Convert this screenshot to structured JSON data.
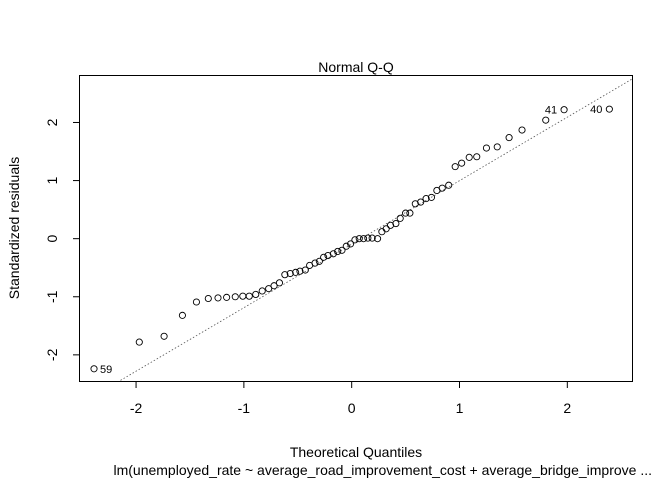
{
  "chart_data": {
    "type": "scatter",
    "title": "Normal Q-Q",
    "xlabel": "Theoretical Quantiles",
    "ylabel": "Standardized residuals",
    "subtitle": "lm(unemployed_rate ~ average_road_improvement_cost + average_bridge_improve ...",
    "xlim": [
      -2.52,
      2.6
    ],
    "ylim": [
      -2.45,
      2.8
    ],
    "x_ticks": [
      -2,
      -1,
      0,
      1,
      2
    ],
    "y_ticks": [
      -2,
      -1,
      0,
      1,
      2
    ],
    "grid": false,
    "reference_line": {
      "style": "dotted",
      "points": [
        [
          -2.2,
          -2.5
        ],
        [
          2.63,
          2.78
        ]
      ]
    },
    "annotations": [
      {
        "text": "59",
        "x": -2.39,
        "y": -2.24
      },
      {
        "text": "41",
        "x": 1.97,
        "y": 2.22
      },
      {
        "text": "40",
        "x": 2.39,
        "y": 2.23
      }
    ],
    "points": [
      {
        "x": -2.39,
        "y": -2.24
      },
      {
        "x": -1.97,
        "y": -1.78
      },
      {
        "x": -1.74,
        "y": -1.68
      },
      {
        "x": -1.57,
        "y": -1.32
      },
      {
        "x": -1.44,
        "y": -1.09
      },
      {
        "x": -1.33,
        "y": -1.03
      },
      {
        "x": -1.24,
        "y": -1.02
      },
      {
        "x": -1.16,
        "y": -1.01
      },
      {
        "x": -1.08,
        "y": -1.0
      },
      {
        "x": -1.01,
        "y": -0.99
      },
      {
        "x": -0.95,
        "y": -0.99
      },
      {
        "x": -0.89,
        "y": -0.96
      },
      {
        "x": -0.83,
        "y": -0.9
      },
      {
        "x": -0.77,
        "y": -0.86
      },
      {
        "x": -0.72,
        "y": -0.81
      },
      {
        "x": -0.67,
        "y": -0.76
      },
      {
        "x": -0.62,
        "y": -0.62
      },
      {
        "x": -0.57,
        "y": -0.6
      },
      {
        "x": -0.52,
        "y": -0.58
      },
      {
        "x": -0.48,
        "y": -0.56
      },
      {
        "x": -0.43,
        "y": -0.54
      },
      {
        "x": -0.39,
        "y": -0.46
      },
      {
        "x": -0.34,
        "y": -0.42
      },
      {
        "x": -0.3,
        "y": -0.39
      },
      {
        "x": -0.26,
        "y": -0.32
      },
      {
        "x": -0.22,
        "y": -0.29
      },
      {
        "x": -0.17,
        "y": -0.26
      },
      {
        "x": -0.13,
        "y": -0.22
      },
      {
        "x": -0.09,
        "y": -0.2
      },
      {
        "x": -0.05,
        "y": -0.13
      },
      {
        "x": -0.01,
        "y": -0.09
      },
      {
        "x": 0.03,
        "y": -0.02
      },
      {
        "x": 0.07,
        "y": 0.0
      },
      {
        "x": 0.11,
        "y": 0.0
      },
      {
        "x": 0.15,
        "y": 0.01
      },
      {
        "x": 0.19,
        "y": 0.01
      },
      {
        "x": 0.24,
        "y": 0.0
      },
      {
        "x": 0.28,
        "y": 0.12
      },
      {
        "x": 0.32,
        "y": 0.17
      },
      {
        "x": 0.36,
        "y": 0.23
      },
      {
        "x": 0.41,
        "y": 0.26
      },
      {
        "x": 0.45,
        "y": 0.35
      },
      {
        "x": 0.5,
        "y": 0.44
      },
      {
        "x": 0.54,
        "y": 0.44
      },
      {
        "x": 0.59,
        "y": 0.6
      },
      {
        "x": 0.64,
        "y": 0.63
      },
      {
        "x": 0.69,
        "y": 0.69
      },
      {
        "x": 0.74,
        "y": 0.71
      },
      {
        "x": 0.79,
        "y": 0.83
      },
      {
        "x": 0.84,
        "y": 0.87
      },
      {
        "x": 0.9,
        "y": 0.92
      },
      {
        "x": 0.96,
        "y": 1.24
      },
      {
        "x": 1.02,
        "y": 1.3
      },
      {
        "x": 1.09,
        "y": 1.4
      },
      {
        "x": 1.16,
        "y": 1.41
      },
      {
        "x": 1.25,
        "y": 1.56
      },
      {
        "x": 1.35,
        "y": 1.58
      },
      {
        "x": 1.46,
        "y": 1.74
      },
      {
        "x": 1.58,
        "y": 1.87
      },
      {
        "x": 1.8,
        "y": 2.04
      },
      {
        "x": 1.97,
        "y": 2.22
      },
      {
        "x": 2.39,
        "y": 2.23
      }
    ]
  }
}
